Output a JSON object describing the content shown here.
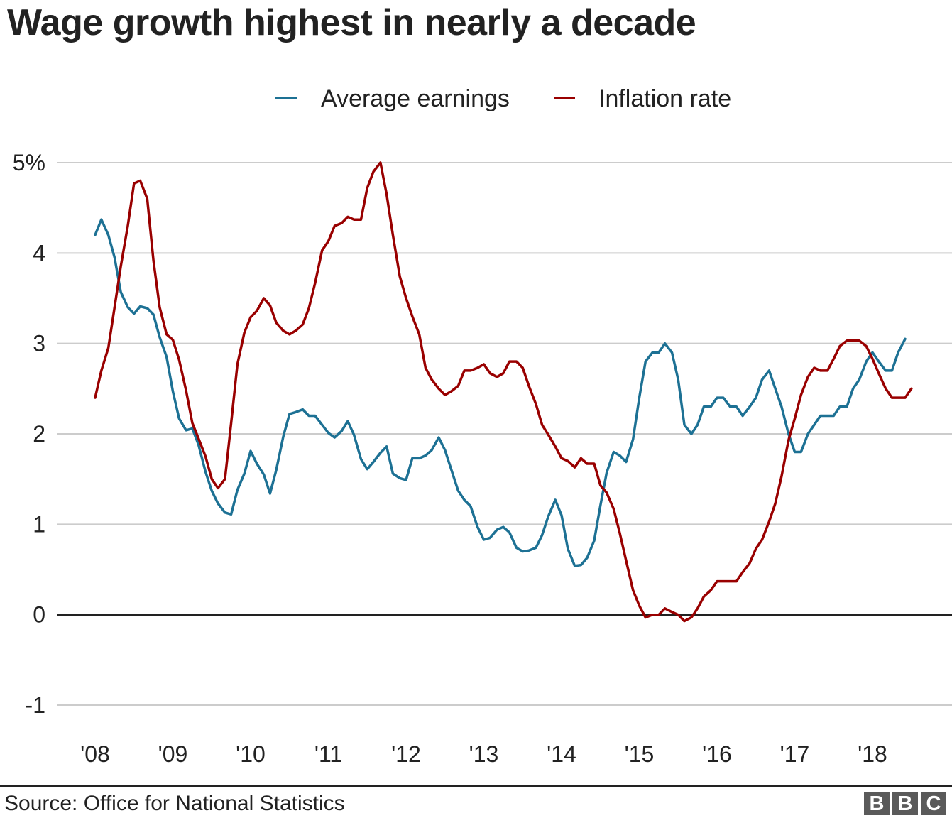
{
  "title": "Wage growth highest in nearly a decade",
  "source": "Source: Office for National Statistics",
  "logo_text": [
    "B",
    "B",
    "C"
  ],
  "colors": {
    "average_earnings": "#1d7194",
    "inflation_rate": "#990000",
    "gridline": "#cccccc",
    "zero_line": "#222222"
  },
  "chart_data": {
    "type": "line",
    "title": "Wage growth highest in nearly a decade",
    "xlabel": "",
    "ylabel": "",
    "ylim": [
      -1,
      5
    ],
    "xlim": [
      2008.0,
      2018.75
    ],
    "y_ticks": [
      {
        "value": 5,
        "label": "5%"
      },
      {
        "value": 4,
        "label": "4"
      },
      {
        "value": 3,
        "label": "3"
      },
      {
        "value": 2,
        "label": "2"
      },
      {
        "value": 1,
        "label": "1"
      },
      {
        "value": 0,
        "label": "0"
      },
      {
        "value": -1,
        "label": "-1"
      }
    ],
    "x_ticks": [
      {
        "value": 2008,
        "label": "'08"
      },
      {
        "value": 2009,
        "label": "'09"
      },
      {
        "value": 2010,
        "label": "'10"
      },
      {
        "value": 2011,
        "label": "'11"
      },
      {
        "value": 2012,
        "label": "'12"
      },
      {
        "value": 2013,
        "label": "'13"
      },
      {
        "value": 2014,
        "label": "'14"
      },
      {
        "value": 2015,
        "label": "'15"
      },
      {
        "value": 2016,
        "label": "'16"
      },
      {
        "value": 2017,
        "label": "'17"
      },
      {
        "value": 2018,
        "label": "'18"
      }
    ],
    "grid": true,
    "legend_position": "top",
    "series": [
      {
        "name": "Average earnings",
        "color": "#1d7194",
        "points": [
          [
            2008.0,
            4.2
          ],
          [
            2008.08,
            4.37
          ],
          [
            2008.17,
            4.2
          ],
          [
            2008.25,
            3.95
          ],
          [
            2008.33,
            3.57
          ],
          [
            2008.42,
            3.4
          ],
          [
            2008.5,
            3.33
          ],
          [
            2008.58,
            3.41
          ],
          [
            2008.67,
            3.39
          ],
          [
            2008.75,
            3.32
          ],
          [
            2008.83,
            3.07
          ],
          [
            2008.92,
            2.85
          ],
          [
            2009.0,
            2.47
          ],
          [
            2009.08,
            2.17
          ],
          [
            2009.17,
            2.04
          ],
          [
            2009.25,
            2.06
          ],
          [
            2009.33,
            1.88
          ],
          [
            2009.42,
            1.58
          ],
          [
            2009.5,
            1.37
          ],
          [
            2009.58,
            1.23
          ],
          [
            2009.67,
            1.13
          ],
          [
            2009.75,
            1.11
          ],
          [
            2009.83,
            1.38
          ],
          [
            2009.92,
            1.56
          ],
          [
            2010.0,
            1.81
          ],
          [
            2010.08,
            1.67
          ],
          [
            2010.17,
            1.55
          ],
          [
            2010.25,
            1.34
          ],
          [
            2010.33,
            1.6
          ],
          [
            2010.42,
            1.97
          ],
          [
            2010.5,
            2.22
          ],
          [
            2010.58,
            2.24
          ],
          [
            2010.67,
            2.27
          ],
          [
            2010.75,
            2.2
          ],
          [
            2010.83,
            2.2
          ],
          [
            2010.92,
            2.1
          ],
          [
            2011.0,
            2.01
          ],
          [
            2011.08,
            1.96
          ],
          [
            2011.17,
            2.03
          ],
          [
            2011.25,
            2.14
          ],
          [
            2011.33,
            1.99
          ],
          [
            2011.42,
            1.72
          ],
          [
            2011.5,
            1.61
          ],
          [
            2011.58,
            1.69
          ],
          [
            2011.67,
            1.79
          ],
          [
            2011.75,
            1.86
          ],
          [
            2011.83,
            1.56
          ],
          [
            2011.92,
            1.51
          ],
          [
            2012.0,
            1.49
          ],
          [
            2012.08,
            1.73
          ],
          [
            2012.17,
            1.73
          ],
          [
            2012.25,
            1.76
          ],
          [
            2012.33,
            1.82
          ],
          [
            2012.42,
            1.96
          ],
          [
            2012.5,
            1.82
          ],
          [
            2012.58,
            1.61
          ],
          [
            2012.67,
            1.37
          ],
          [
            2012.75,
            1.27
          ],
          [
            2012.83,
            1.2
          ],
          [
            2012.92,
            0.97
          ],
          [
            2013.0,
            0.83
          ],
          [
            2013.08,
            0.85
          ],
          [
            2013.17,
            0.94
          ],
          [
            2013.25,
            0.97
          ],
          [
            2013.33,
            0.91
          ],
          [
            2013.42,
            0.74
          ],
          [
            2013.5,
            0.7
          ],
          [
            2013.58,
            0.71
          ],
          [
            2013.67,
            0.74
          ],
          [
            2013.75,
            0.88
          ],
          [
            2013.83,
            1.09
          ],
          [
            2013.92,
            1.27
          ],
          [
            2014.0,
            1.1
          ],
          [
            2014.08,
            0.73
          ],
          [
            2014.17,
            0.54
          ],
          [
            2014.25,
            0.55
          ],
          [
            2014.33,
            0.63
          ],
          [
            2014.42,
            0.82
          ],
          [
            2014.5,
            1.21
          ],
          [
            2014.58,
            1.57
          ],
          [
            2014.67,
            1.8
          ],
          [
            2014.75,
            1.76
          ],
          [
            2014.83,
            1.69
          ],
          [
            2014.92,
            1.94
          ],
          [
            2015.0,
            2.4
          ],
          [
            2015.08,
            2.8
          ],
          [
            2015.17,
            2.9
          ],
          [
            2015.25,
            2.9
          ],
          [
            2015.33,
            3.0
          ],
          [
            2015.42,
            2.9
          ],
          [
            2015.5,
            2.6
          ],
          [
            2015.58,
            2.1
          ],
          [
            2015.67,
            2.0
          ],
          [
            2015.75,
            2.1
          ],
          [
            2015.83,
            2.3
          ],
          [
            2015.92,
            2.3
          ],
          [
            2016.0,
            2.4
          ],
          [
            2016.08,
            2.4
          ],
          [
            2016.17,
            2.3
          ],
          [
            2016.25,
            2.3
          ],
          [
            2016.33,
            2.2
          ],
          [
            2016.42,
            2.3
          ],
          [
            2016.5,
            2.4
          ],
          [
            2016.58,
            2.6
          ],
          [
            2016.67,
            2.7
          ],
          [
            2016.75,
            2.5
          ],
          [
            2016.83,
            2.3
          ],
          [
            2016.92,
            2.0
          ],
          [
            2017.0,
            1.8
          ],
          [
            2017.08,
            1.8
          ],
          [
            2017.17,
            2.0
          ],
          [
            2017.25,
            2.1
          ],
          [
            2017.33,
            2.2
          ],
          [
            2017.42,
            2.2
          ],
          [
            2017.5,
            2.2
          ],
          [
            2017.58,
            2.3
          ],
          [
            2017.67,
            2.3
          ],
          [
            2017.75,
            2.5
          ],
          [
            2017.83,
            2.6
          ],
          [
            2017.92,
            2.8
          ],
          [
            2018.0,
            2.9
          ],
          [
            2018.08,
            2.8
          ],
          [
            2018.17,
            2.7
          ],
          [
            2018.25,
            2.7
          ],
          [
            2018.33,
            2.9
          ],
          [
            2018.42,
            3.05
          ]
        ]
      },
      {
        "name": "Inflation rate",
        "color": "#990000",
        "points": [
          [
            2008.0,
            2.4
          ],
          [
            2008.08,
            2.7
          ],
          [
            2008.17,
            2.95
          ],
          [
            2008.25,
            3.4
          ],
          [
            2008.33,
            3.85
          ],
          [
            2008.42,
            4.3
          ],
          [
            2008.5,
            4.77
          ],
          [
            2008.58,
            4.8
          ],
          [
            2008.67,
            4.6
          ],
          [
            2008.75,
            3.92
          ],
          [
            2008.83,
            3.4
          ],
          [
            2008.92,
            3.1
          ],
          [
            2009.0,
            3.04
          ],
          [
            2009.08,
            2.82
          ],
          [
            2009.17,
            2.48
          ],
          [
            2009.25,
            2.12
          ],
          [
            2009.33,
            1.95
          ],
          [
            2009.42,
            1.75
          ],
          [
            2009.5,
            1.5
          ],
          [
            2009.58,
            1.4
          ],
          [
            2009.67,
            1.5
          ],
          [
            2009.75,
            2.12
          ],
          [
            2009.83,
            2.77
          ],
          [
            2009.92,
            3.12
          ],
          [
            2010.0,
            3.29
          ],
          [
            2010.08,
            3.36
          ],
          [
            2010.17,
            3.5
          ],
          [
            2010.25,
            3.42
          ],
          [
            2010.33,
            3.23
          ],
          [
            2010.42,
            3.14
          ],
          [
            2010.5,
            3.1
          ],
          [
            2010.58,
            3.14
          ],
          [
            2010.67,
            3.21
          ],
          [
            2010.75,
            3.39
          ],
          [
            2010.83,
            3.67
          ],
          [
            2010.92,
            4.03
          ],
          [
            2011.0,
            4.13
          ],
          [
            2011.08,
            4.3
          ],
          [
            2011.17,
            4.33
          ],
          [
            2011.25,
            4.4
          ],
          [
            2011.33,
            4.37
          ],
          [
            2011.42,
            4.37
          ],
          [
            2011.5,
            4.72
          ],
          [
            2011.58,
            4.9
          ],
          [
            2011.67,
            5.0
          ],
          [
            2011.75,
            4.65
          ],
          [
            2011.83,
            4.2
          ],
          [
            2011.92,
            3.74
          ],
          [
            2012.0,
            3.5
          ],
          [
            2012.08,
            3.3
          ],
          [
            2012.17,
            3.1
          ],
          [
            2012.25,
            2.73
          ],
          [
            2012.33,
            2.6
          ],
          [
            2012.42,
            2.5
          ],
          [
            2012.5,
            2.43
          ],
          [
            2012.58,
            2.47
          ],
          [
            2012.67,
            2.53
          ],
          [
            2012.75,
            2.7
          ],
          [
            2012.83,
            2.7
          ],
          [
            2012.92,
            2.73
          ],
          [
            2013.0,
            2.77
          ],
          [
            2013.08,
            2.67
          ],
          [
            2013.17,
            2.63
          ],
          [
            2013.25,
            2.67
          ],
          [
            2013.33,
            2.8
          ],
          [
            2013.42,
            2.8
          ],
          [
            2013.5,
            2.73
          ],
          [
            2013.58,
            2.53
          ],
          [
            2013.67,
            2.33
          ],
          [
            2013.75,
            2.1
          ],
          [
            2013.83,
            1.99
          ],
          [
            2013.92,
            1.86
          ],
          [
            2014.0,
            1.73
          ],
          [
            2014.08,
            1.7
          ],
          [
            2014.17,
            1.63
          ],
          [
            2014.25,
            1.73
          ],
          [
            2014.33,
            1.67
          ],
          [
            2014.42,
            1.67
          ],
          [
            2014.5,
            1.43
          ],
          [
            2014.58,
            1.35
          ],
          [
            2014.67,
            1.17
          ],
          [
            2014.75,
            0.9
          ],
          [
            2014.83,
            0.6
          ],
          [
            2014.92,
            0.27
          ],
          [
            2015.0,
            0.1
          ],
          [
            2015.08,
            -0.03
          ],
          [
            2015.17,
            0.0
          ],
          [
            2015.25,
            0.0
          ],
          [
            2015.33,
            0.07
          ],
          [
            2015.42,
            0.03
          ],
          [
            2015.5,
            0.0
          ],
          [
            2015.58,
            -0.07
          ],
          [
            2015.67,
            -0.03
          ],
          [
            2015.75,
            0.07
          ],
          [
            2015.83,
            0.2
          ],
          [
            2015.92,
            0.27
          ],
          [
            2016.0,
            0.37
          ],
          [
            2016.08,
            0.37
          ],
          [
            2016.17,
            0.37
          ],
          [
            2016.25,
            0.37
          ],
          [
            2016.33,
            0.47
          ],
          [
            2016.42,
            0.57
          ],
          [
            2016.5,
            0.73
          ],
          [
            2016.58,
            0.83
          ],
          [
            2016.67,
            1.03
          ],
          [
            2016.75,
            1.23
          ],
          [
            2016.83,
            1.53
          ],
          [
            2016.92,
            1.93
          ],
          [
            2017.0,
            2.17
          ],
          [
            2017.08,
            2.43
          ],
          [
            2017.17,
            2.63
          ],
          [
            2017.25,
            2.73
          ],
          [
            2017.33,
            2.7
          ],
          [
            2017.42,
            2.7
          ],
          [
            2017.5,
            2.83
          ],
          [
            2017.58,
            2.97
          ],
          [
            2017.67,
            3.03
          ],
          [
            2017.75,
            3.03
          ],
          [
            2017.83,
            3.03
          ],
          [
            2017.92,
            2.97
          ],
          [
            2018.0,
            2.83
          ],
          [
            2018.08,
            2.67
          ],
          [
            2018.17,
            2.5
          ],
          [
            2018.25,
            2.4
          ],
          [
            2018.33,
            2.4
          ],
          [
            2018.42,
            2.4
          ],
          [
            2018.5,
            2.5
          ]
        ]
      }
    ]
  }
}
